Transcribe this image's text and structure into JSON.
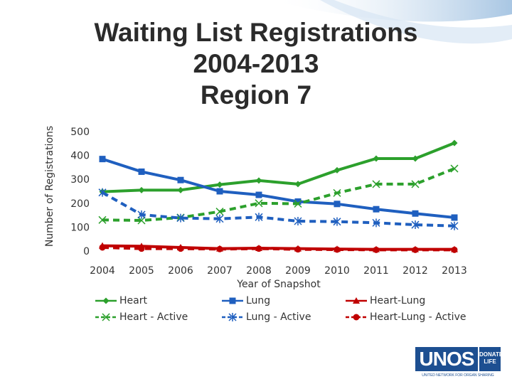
{
  "title_lines": [
    "Waiting List Registrations",
    "2004-2013",
    "Region 7"
  ],
  "chart_data": {
    "type": "line",
    "title": "Waiting List Registrations 2004-2013 Region 7",
    "xlabel": "Year of Snapshot",
    "ylabel": "Number of Registrations",
    "ylim": [
      0,
      500
    ],
    "yticks": [
      "0",
      "100",
      "200",
      "300",
      "400",
      "500"
    ],
    "categories": [
      "2004",
      "2005",
      "2006",
      "2007",
      "2008",
      "2009",
      "2010",
      "2011",
      "2012",
      "2013"
    ],
    "grid": false,
    "legend_position": "bottom",
    "series": [
      {
        "name": "Heart",
        "color": "#2ca02c",
        "dash": "solid",
        "marker": "diamond",
        "values": [
          248,
          255,
          255,
          278,
          295,
          280,
          338,
          387,
          387,
          452
        ]
      },
      {
        "name": "Lung",
        "color": "#1f5fbf",
        "dash": "solid",
        "marker": "square",
        "values": [
          385,
          332,
          297,
          250,
          235,
          207,
          197,
          175,
          157,
          140
        ]
      },
      {
        "name": "Heart-Lung",
        "color": "#c00000",
        "dash": "solid",
        "marker": "triangle",
        "values": [
          22,
          20,
          15,
          10,
          12,
          10,
          8,
          7,
          7,
          7
        ]
      },
      {
        "name": "Heart - Active",
        "color": "#2ca02c",
        "dash": "dashed",
        "marker": "x",
        "values": [
          130,
          128,
          140,
          165,
          200,
          198,
          243,
          280,
          280,
          345
        ]
      },
      {
        "name": "Lung - Active",
        "color": "#1f5fbf",
        "dash": "dashed",
        "marker": "star",
        "values": [
          245,
          152,
          138,
          135,
          142,
          125,
          123,
          118,
          110,
          105
        ]
      },
      {
        "name": "Heart-Lung - Active",
        "color": "#c00000",
        "dash": "dashed",
        "marker": "circle",
        "values": [
          15,
          10,
          10,
          8,
          10,
          7,
          6,
          5,
          5,
          5
        ]
      }
    ]
  },
  "legend": [
    {
      "label": "Heart"
    },
    {
      "label": "Lung"
    },
    {
      "label": "Heart-Lung"
    },
    {
      "label": "Heart - Active"
    },
    {
      "label": "Lung - Active"
    },
    {
      "label": "Heart-Lung - Active"
    }
  ],
  "logo": {
    "main": "UNOS",
    "side": "DONATE LIFE",
    "subtitle": "UNITED NETWORK FOR ORGAN SHARING"
  }
}
